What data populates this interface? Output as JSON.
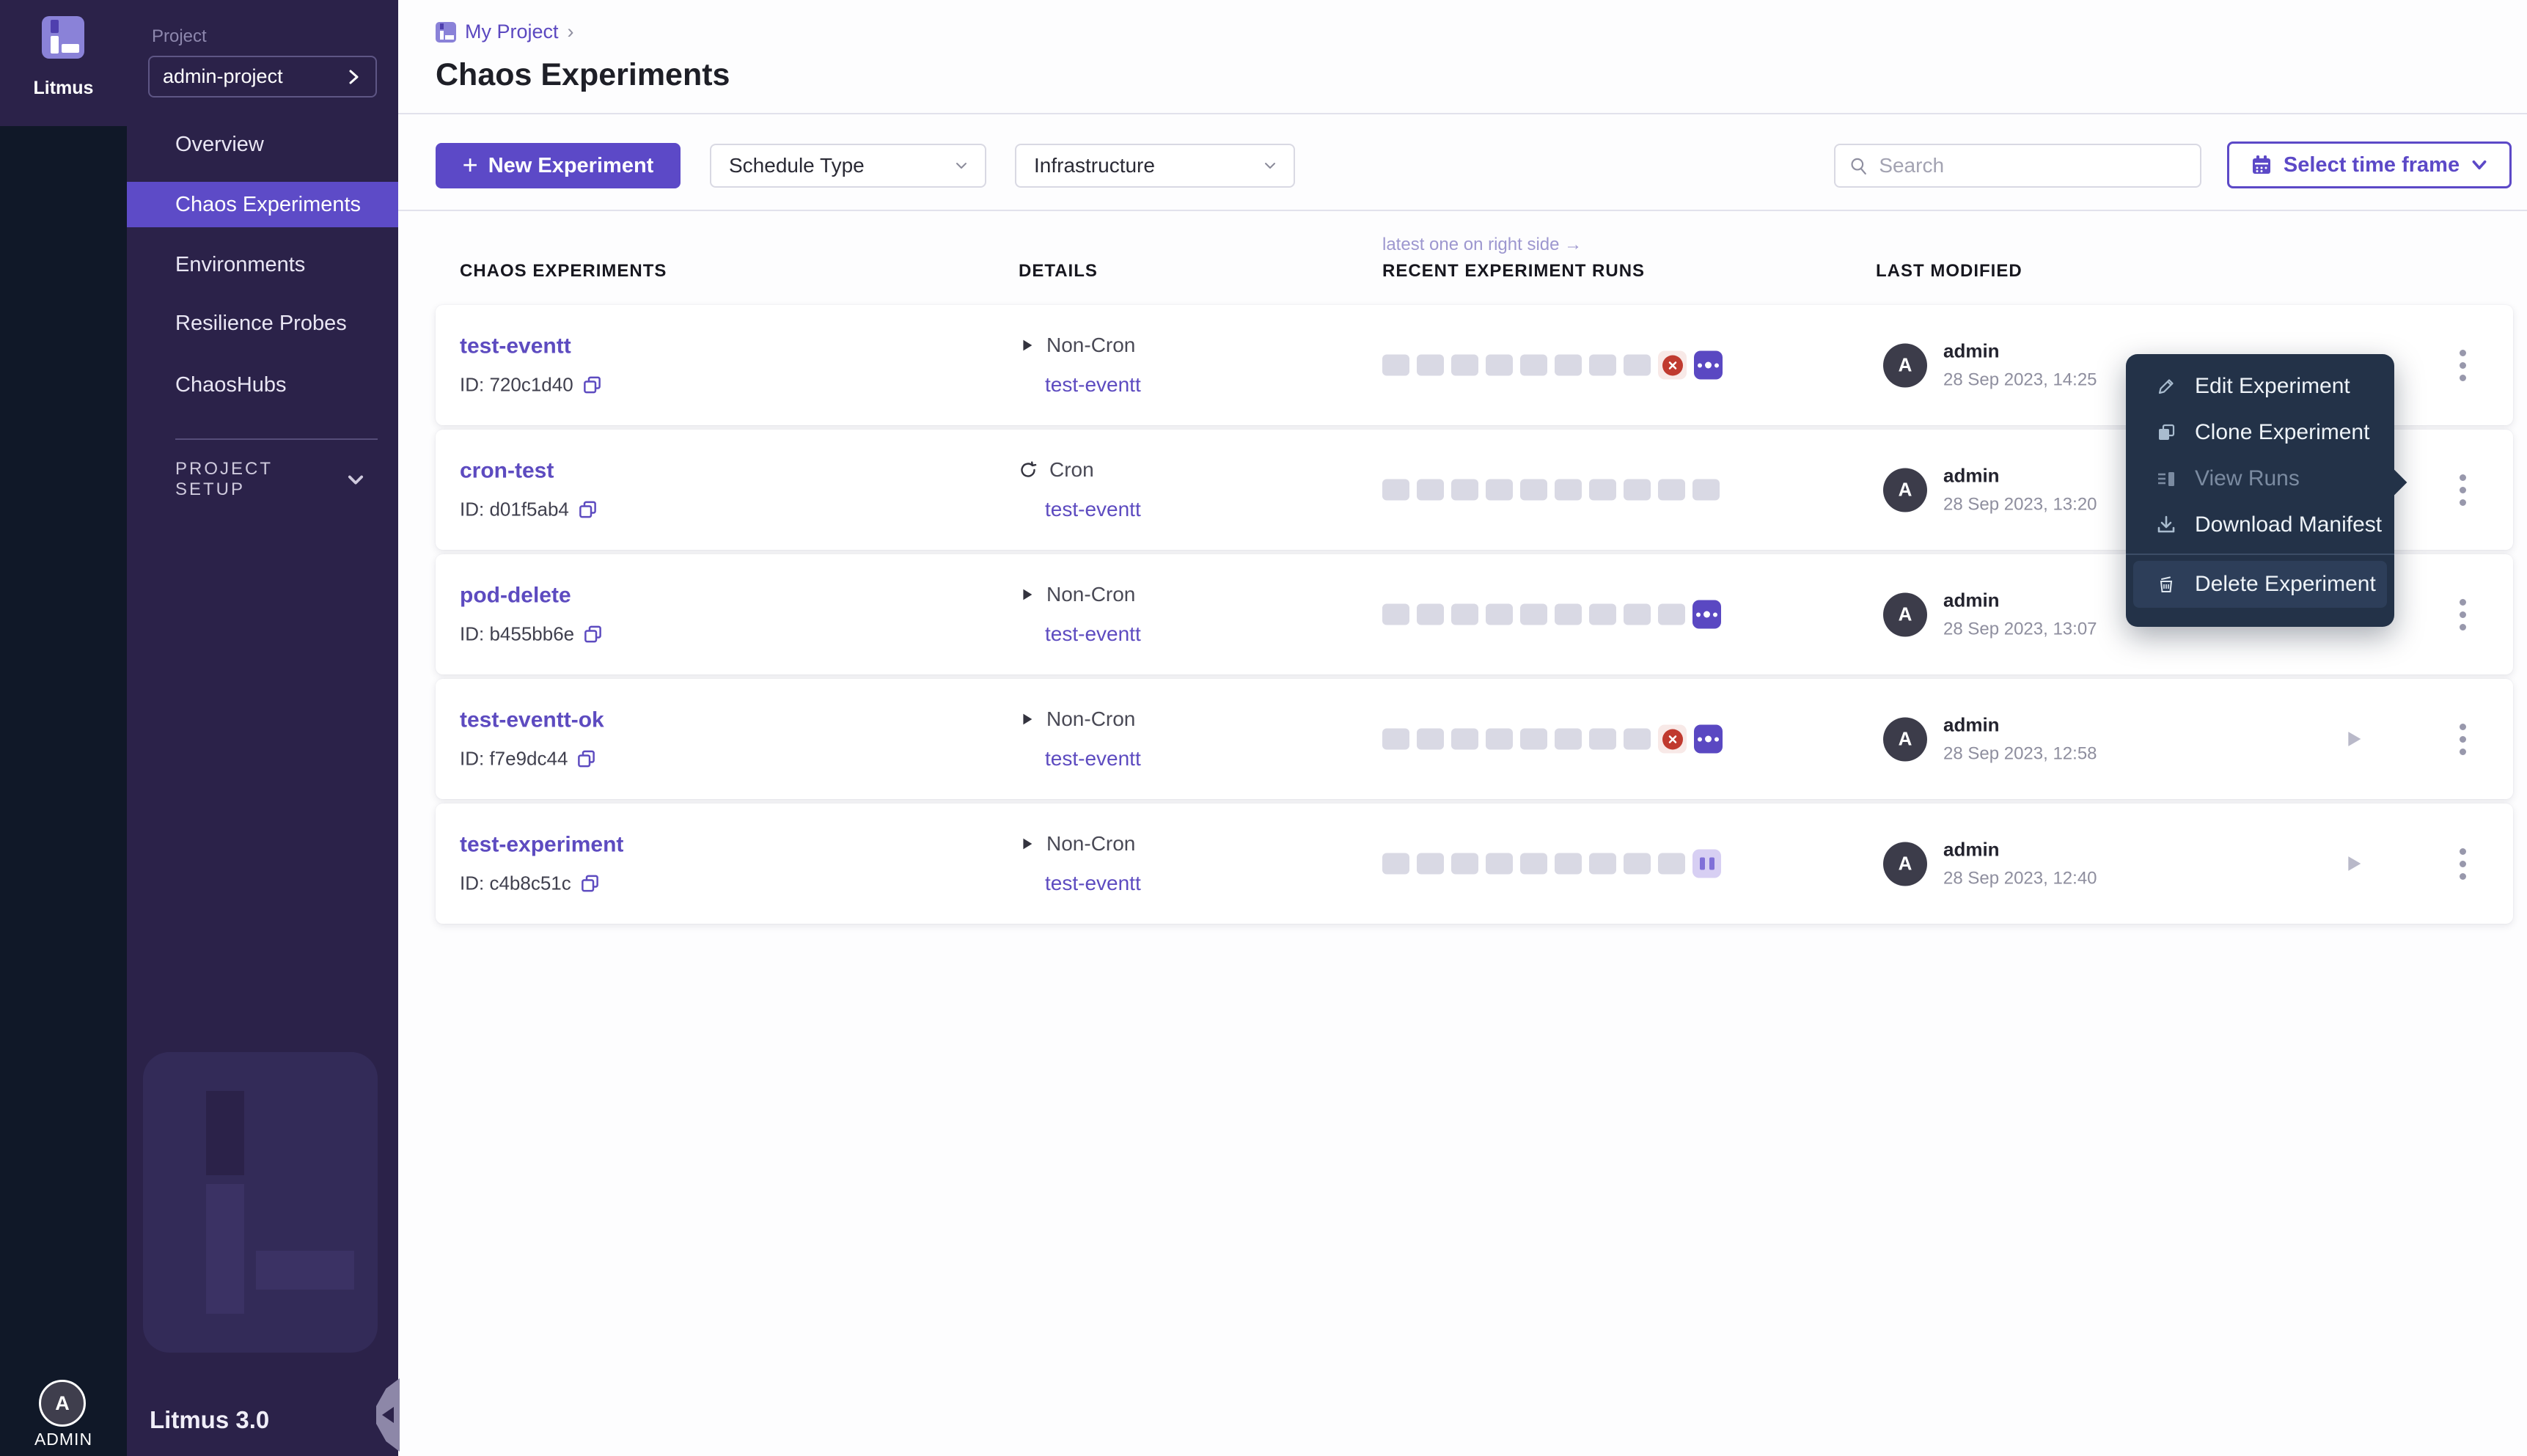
{
  "colors": {
    "accent": "#5c49c7",
    "nav_active_bg": "#5d4bc7",
    "sidebar_bg": "#2b2249",
    "rail_bg": "#101828",
    "menu_bg": "#233248",
    "link_purple": "#5d4bc0",
    "failed_red": "#c03a2f",
    "running_purple": "#5a48c2",
    "paused_lavender": "#d7cff3",
    "run_slot_gray": "#d9d9e4"
  },
  "sidebar": {
    "brand": "Litmus",
    "project_label": "Project",
    "project_value": "admin-project",
    "nav": [
      {
        "label": "Overview"
      },
      {
        "label": "Chaos Experiments"
      },
      {
        "label": "Environments"
      },
      {
        "label": "Resilience Probes"
      },
      {
        "label": "ChaosHubs"
      }
    ],
    "section_label": "PROJECT SETUP",
    "version": "Litmus 3.0",
    "user": {
      "initial": "A",
      "label": "ADMIN"
    }
  },
  "header": {
    "breadcrumb": "My Project",
    "breadcrumb_sep": "›",
    "title": "Chaos Experiments"
  },
  "toolbar": {
    "plus": "+",
    "new_button": "New Experiment",
    "schedule_filter": "Schedule Type",
    "infra_filter": "Infrastructure",
    "search_placeholder": "Search",
    "timeframe_button": "Select time frame"
  },
  "table": {
    "headers": {
      "experiments": "CHAOS EXPERIMENTS",
      "details": "DETAILS",
      "runs_note": "latest one on right side →",
      "runs": "RECENT EXPERIMENT RUNS",
      "modified": "LAST MODIFIED"
    },
    "rows": [
      {
        "name": "test-eventt",
        "id": "ID: 720c1d40",
        "schedule": "Non-Cron",
        "link": "test-eventt",
        "avatar": "A",
        "author": "admin",
        "date": "28 Sep 2023, 14:25",
        "runs": [
          "gray",
          "gray",
          "gray",
          "gray",
          "gray",
          "gray",
          "gray",
          "gray",
          "failed",
          "running"
        ]
      },
      {
        "name": "cron-test",
        "id": "ID: d01f5ab4",
        "schedule": "Cron",
        "link": "test-eventt",
        "avatar": "A",
        "author": "admin",
        "date": "28 Sep 2023, 13:20",
        "runs": [
          "gray",
          "gray",
          "gray",
          "gray",
          "gray",
          "gray",
          "gray",
          "gray",
          "gray",
          "gray"
        ]
      },
      {
        "name": "pod-delete",
        "id": "ID: b455bb6e",
        "schedule": "Non-Cron",
        "link": "test-eventt",
        "avatar": "A",
        "author": "admin",
        "date": "28 Sep 2023, 13:07",
        "runs": [
          "gray",
          "gray",
          "gray",
          "gray",
          "gray",
          "gray",
          "gray",
          "gray",
          "gray",
          "running"
        ]
      },
      {
        "name": "test-eventt-ok",
        "id": "ID: f7e9dc44",
        "schedule": "Non-Cron",
        "link": "test-eventt",
        "avatar": "A",
        "author": "admin",
        "date": "28 Sep 2023, 12:58",
        "runs": [
          "gray",
          "gray",
          "gray",
          "gray",
          "gray",
          "gray",
          "gray",
          "gray",
          "failed",
          "running"
        ]
      },
      {
        "name": "test-experiment",
        "id": "ID: c4b8c51c",
        "schedule": "Non-Cron",
        "link": "test-eventt",
        "avatar": "A",
        "author": "admin",
        "date": "28 Sep 2023, 12:40",
        "runs": [
          "gray",
          "gray",
          "gray",
          "gray",
          "gray",
          "gray",
          "gray",
          "gray",
          "gray",
          "paused"
        ]
      }
    ]
  },
  "context_menu": {
    "items": [
      {
        "label": "Edit Experiment"
      },
      {
        "label": "Clone Experiment"
      },
      {
        "label": "View Runs",
        "disabled": true
      },
      {
        "label": "Download Manifest"
      },
      {
        "label": "Delete Experiment"
      }
    ]
  }
}
